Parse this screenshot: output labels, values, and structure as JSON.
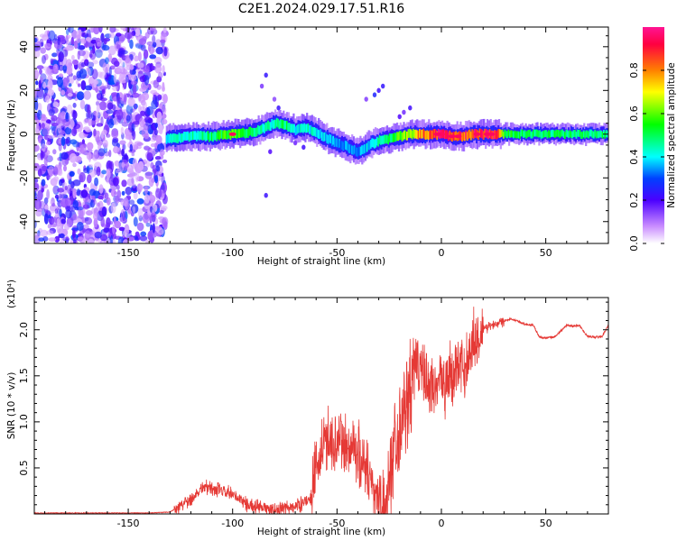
{
  "title": "C2E1.2024.029.17.51.R16",
  "chart_data": [
    {
      "type": "heatmap",
      "xlabel": "Height of straight line (km)",
      "ylabel": "Frequency (Hz)",
      "xlim": [
        -195,
        80
      ],
      "ylim": [
        -50,
        49
      ],
      "x_ticks": [
        -150,
        -100,
        -50,
        0,
        50
      ],
      "y_ticks": [
        -40,
        -20,
        0,
        20,
        40
      ],
      "x_tick_labels": [
        "-150",
        "-100",
        "-50",
        "0",
        "50"
      ],
      "y_tick_labels": [
        "-40",
        "-20",
        "0",
        "20",
        "40"
      ],
      "colorbar": {
        "label": "Normalized spectral amplitude",
        "range": [
          0,
          1
        ],
        "ticks": [
          0.0,
          0.2,
          0.4,
          0.6,
          0.8
        ],
        "tick_labels": [
          "0.0",
          "0.2",
          "0.4",
          "0.6",
          "0.8"
        ],
        "colormap": "hsv-rainbow"
      },
      "ridge": {
        "x": [
          -132,
          -120,
          -110,
          -100,
          -90,
          -85,
          -80,
          -75,
          -70,
          -65,
          -60,
          -55,
          -50,
          -45,
          -40,
          -35,
          -30,
          -25,
          -20,
          -15,
          -10,
          -5,
          0,
          5,
          10,
          15,
          20,
          25,
          30,
          40,
          50,
          60,
          70,
          80
        ],
        "frequency": [
          -2,
          -1,
          -1,
          0,
          1,
          3,
          5,
          4,
          2,
          3,
          1,
          -2,
          -4,
          -6,
          -8,
          -5,
          -3,
          -2,
          -1,
          0,
          0,
          0,
          0,
          -1,
          -1,
          0,
          0,
          0,
          0,
          0,
          0,
          0,
          0,
          0
        ],
        "amplitude": [
          0.4,
          0.45,
          0.5,
          0.6,
          0.5,
          0.45,
          0.45,
          0.5,
          0.4,
          0.45,
          0.4,
          0.4,
          0.35,
          0.35,
          0.35,
          0.4,
          0.45,
          0.5,
          0.6,
          0.7,
          0.8,
          0.85,
          0.95,
          0.9,
          0.9,
          0.9,
          0.95,
          0.95,
          0.55,
          0.5,
          0.5,
          0.5,
          0.5,
          0.5
        ]
      }
    },
    {
      "type": "line",
      "xlabel": "Height of straight line (km)",
      "ylabel": "SNR (10 * v/v)",
      "y_scale_label": "(x10⁴)",
      "xlim": [
        -195,
        80
      ],
      "ylim": [
        0,
        2.35
      ],
      "x_ticks": [
        -150,
        -100,
        -50,
        0,
        50
      ],
      "y_ticks": [
        0.5,
        1.0,
        1.5,
        2.0
      ],
      "x_tick_labels": [
        "-150",
        "-100",
        "-50",
        "0",
        "50"
      ],
      "y_tick_labels": [
        "0.5",
        "1.0",
        "1.5",
        "2.0"
      ],
      "color": "#e53935",
      "series": [
        {
          "x": [
            -195,
            -180,
            -160,
            -140,
            -130,
            -126,
            -122,
            -118,
            -114,
            -110,
            -106,
            -102,
            -98,
            -94,
            -90,
            -86,
            -82,
            -78,
            -74,
            -70,
            -66,
            -62,
            -60,
            -57,
            -54,
            -51,
            -48,
            -45,
            -42,
            -39,
            -36,
            -33,
            -30,
            -27,
            -24,
            -21,
            -18,
            -15,
            -13,
            -11,
            -9,
            -7,
            -5,
            -3,
            -1,
            1,
            3,
            5,
            7,
            9,
            11,
            13,
            15,
            18,
            21,
            24,
            27,
            30,
            33,
            36,
            40,
            44,
            47,
            50,
            54,
            57,
            60,
            63,
            66,
            70,
            74,
            77,
            80
          ],
          "y": [
            0.01,
            0.01,
            0.01,
            0.01,
            0.02,
            0.08,
            0.14,
            0.2,
            0.3,
            0.28,
            0.25,
            0.22,
            0.18,
            0.12,
            0.08,
            0.06,
            0.05,
            0.05,
            0.06,
            0.08,
            0.12,
            0.2,
            0.45,
            0.7,
            0.85,
            0.75,
            0.8,
            0.7,
            0.75,
            0.6,
            0.55,
            0.3,
            0.15,
            0.05,
            0.6,
            0.9,
            1.1,
            1.3,
            1.5,
            1.7,
            1.55,
            1.35,
            1.45,
            1.3,
            1.6,
            1.35,
            1.55,
            1.4,
            1.65,
            1.55,
            1.6,
            1.7,
            1.85,
            1.95,
            2.02,
            2.05,
            2.08,
            2.1,
            2.12,
            2.1,
            2.06,
            2.05,
            1.92,
            1.91,
            1.92,
            1.98,
            2.05,
            2.04,
            2.05,
            1.93,
            1.92,
            1.93,
            2.05
          ]
        }
      ]
    }
  ]
}
